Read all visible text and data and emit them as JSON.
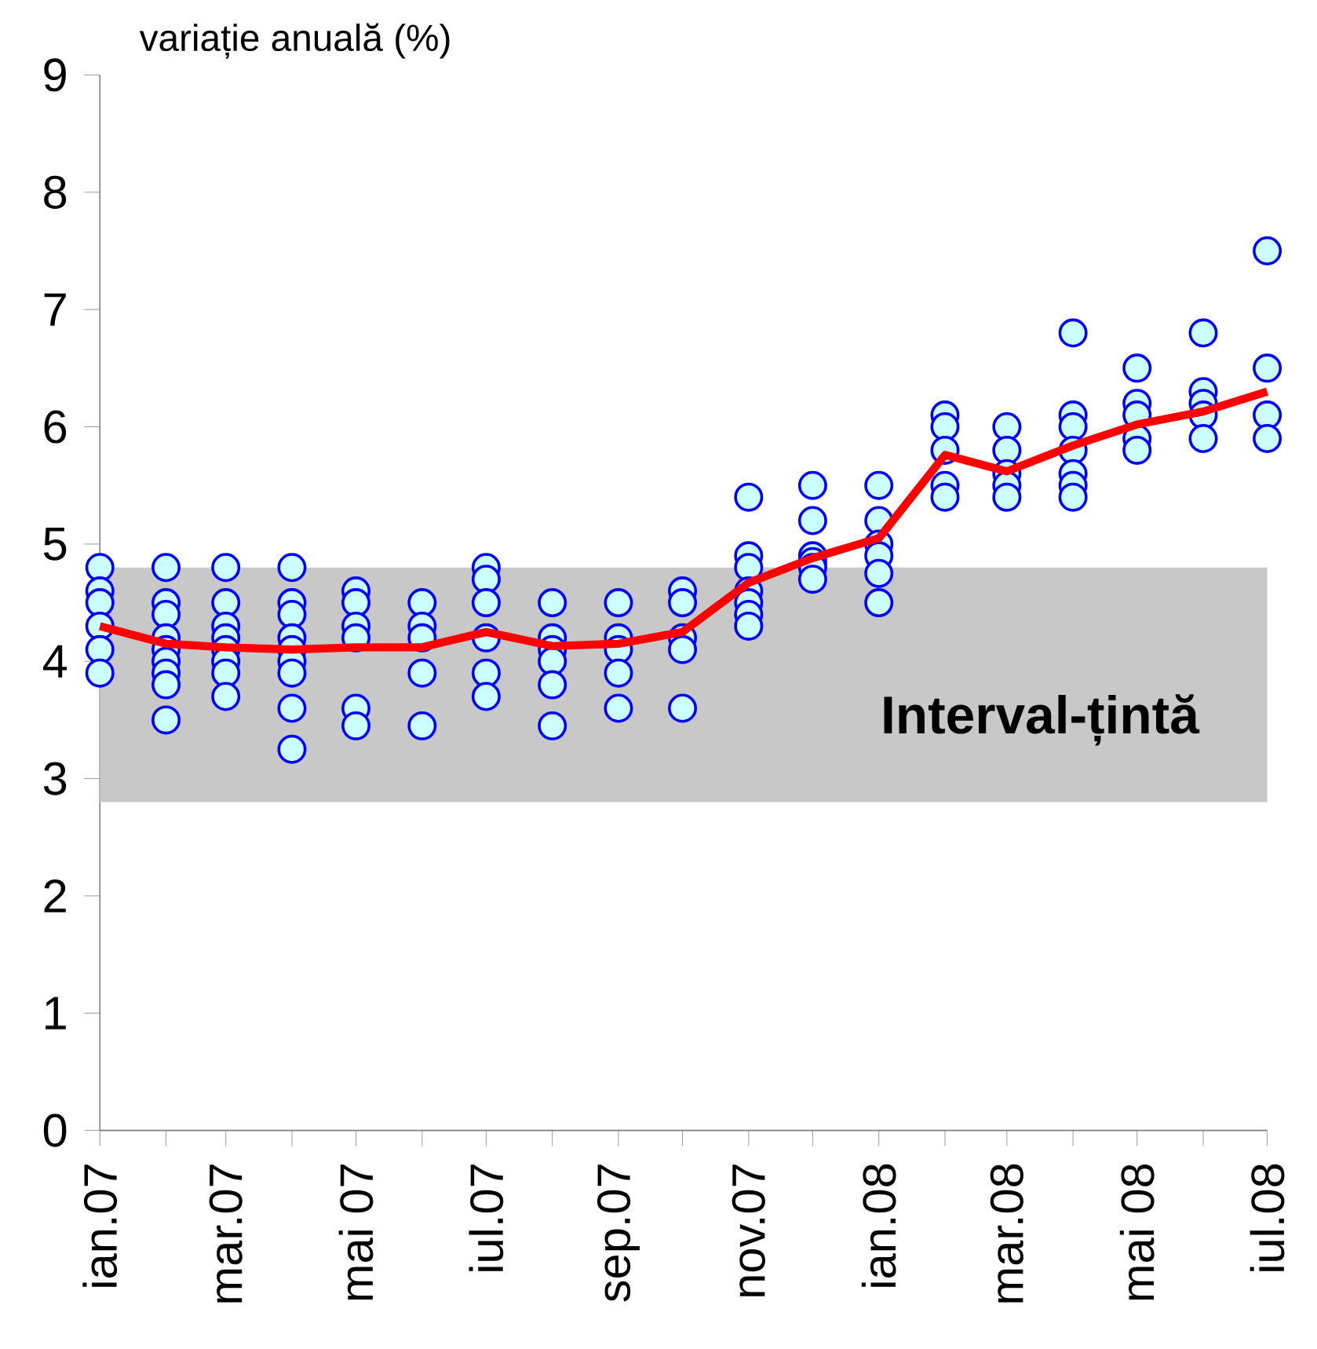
{
  "chart_data": {
    "type": "line",
    "ylabel": "variație anuală (%)",
    "xlim": [
      "2007-01",
      "2008-07"
    ],
    "ylim": [
      0,
      9
    ],
    "yticks": [
      0,
      1,
      2,
      3,
      4,
      5,
      6,
      7,
      8,
      9
    ],
    "xticks": [
      {
        "value": "2007-01",
        "label": "ian.07"
      },
      {
        "value": "2007-02",
        "label": null
      },
      {
        "value": "2007-03",
        "label": "mar.07"
      },
      {
        "value": "2007-04",
        "label": null
      },
      {
        "value": "2007-05",
        "label": "mai 07"
      },
      {
        "value": "2007-06",
        "label": null
      },
      {
        "value": "2007-07",
        "label": "iul.07"
      },
      {
        "value": "2007-08",
        "label": null
      },
      {
        "value": "2007-09",
        "label": "sep.07"
      },
      {
        "value": "2007-10",
        "label": null
      },
      {
        "value": "2007-11",
        "label": "nov.07"
      },
      {
        "value": "2007-12",
        "label": null
      },
      {
        "value": "2008-01",
        "label": "ian.08"
      },
      {
        "value": "2008-02",
        "label": null
      },
      {
        "value": "2008-03",
        "label": "mar.08"
      },
      {
        "value": "2008-04",
        "label": null
      },
      {
        "value": "2008-05",
        "label": "mai 08"
      },
      {
        "value": "2008-06",
        "label": null
      },
      {
        "value": "2008-07",
        "label": "iul.08"
      }
    ],
    "bands": [
      {
        "axis": "y",
        "from": 2.8,
        "to": 4.8,
        "label": "Interval-țintă",
        "color": "#c8c8c8"
      }
    ],
    "series": [
      {
        "type": "scatter",
        "color": "#ccffff",
        "marker": "circle",
        "x": [
          "2007-01",
          "2007-01",
          "2007-01",
          "2007-01",
          "2007-01",
          "2007-01",
          "2007-02",
          "2007-02",
          "2007-02",
          "2007-02",
          "2007-02",
          "2007-02",
          "2007-02",
          "2007-02",
          "2007-02",
          "2007-03",
          "2007-03",
          "2007-03",
          "2007-03",
          "2007-03",
          "2007-03",
          "2007-03",
          "2007-03",
          "2007-04",
          "2007-04",
          "2007-04",
          "2007-04",
          "2007-04",
          "2007-04",
          "2007-04",
          "2007-04",
          "2007-04",
          "2007-05",
          "2007-05",
          "2007-05",
          "2007-05",
          "2007-05",
          "2007-05",
          "2007-06",
          "2007-06",
          "2007-06",
          "2007-06",
          "2007-06",
          "2007-07",
          "2007-07",
          "2007-07",
          "2007-07",
          "2007-07",
          "2007-07",
          "2007-08",
          "2007-08",
          "2007-08",
          "2007-08",
          "2007-08",
          "2007-08",
          "2007-09",
          "2007-09",
          "2007-09",
          "2007-09",
          "2007-09",
          "2007-10",
          "2007-10",
          "2007-10",
          "2007-10",
          "2007-10",
          "2007-11",
          "2007-11",
          "2007-11",
          "2007-11",
          "2007-11",
          "2007-11",
          "2007-11",
          "2007-12",
          "2007-12",
          "2007-12",
          "2007-12",
          "2007-12",
          "2007-12",
          "2008-01",
          "2008-01",
          "2008-01",
          "2008-01",
          "2008-01",
          "2008-01",
          "2008-02",
          "2008-02",
          "2008-02",
          "2008-02",
          "2008-02",
          "2008-03",
          "2008-03",
          "2008-03",
          "2008-03",
          "2008-03",
          "2008-04",
          "2008-04",
          "2008-04",
          "2008-04",
          "2008-04",
          "2008-04",
          "2008-04",
          "2008-05",
          "2008-05",
          "2008-05",
          "2008-05",
          "2008-05",
          "2008-06",
          "2008-06",
          "2008-06",
          "2008-06",
          "2008-06",
          "2008-07",
          "2008-07",
          "2008-07",
          "2008-07"
        ],
        "values": [
          4.8,
          4.6,
          4.5,
          4.3,
          4.1,
          3.9,
          4.8,
          4.5,
          4.4,
          4.2,
          4.1,
          4.0,
          3.9,
          3.8,
          3.5,
          4.8,
          4.5,
          4.3,
          4.2,
          4.1,
          4.0,
          3.9,
          3.7,
          4.8,
          4.5,
          4.4,
          4.2,
          4.1,
          4.0,
          3.9,
          3.6,
          3.25,
          4.6,
          4.5,
          4.3,
          4.2,
          3.6,
          3.45,
          4.5,
          4.3,
          4.2,
          3.9,
          3.45,
          4.8,
          4.7,
          4.5,
          4.2,
          3.9,
          3.7,
          4.5,
          4.2,
          4.1,
          4.0,
          3.8,
          3.45,
          4.5,
          4.2,
          4.1,
          3.9,
          3.6,
          4.6,
          4.5,
          4.2,
          4.1,
          3.6,
          5.4,
          4.9,
          4.8,
          4.6,
          4.5,
          4.4,
          4.3,
          5.5,
          5.2,
          4.9,
          4.85,
          4.8,
          4.7,
          5.5,
          5.2,
          5.0,
          4.9,
          4.75,
          4.5,
          6.1,
          6.0,
          5.8,
          5.5,
          5.4,
          6.0,
          5.8,
          5.6,
          5.5,
          5.4,
          6.8,
          6.1,
          6.0,
          5.8,
          5.6,
          5.5,
          5.4,
          6.5,
          6.2,
          6.1,
          5.9,
          5.8,
          6.8,
          6.3,
          6.2,
          6.1,
          5.9,
          7.5,
          6.5,
          6.1,
          5.9
        ]
      },
      {
        "type": "line",
        "color": "#ff0000",
        "marker": "none",
        "line_style": "solid",
        "x": [
          "2007-01",
          "2007-02",
          "2007-03",
          "2007-04",
          "2007-05",
          "2007-06",
          "2007-07",
          "2007-08",
          "2007-09",
          "2007-10",
          "2007-11",
          "2007-12",
          "2008-01",
          "2008-02",
          "2008-03",
          "2008-04",
          "2008-05",
          "2008-06",
          "2008-07"
        ],
        "values": [
          4.3,
          4.15,
          4.12,
          4.1,
          4.12,
          4.12,
          4.25,
          4.13,
          4.15,
          4.25,
          4.67,
          4.88,
          5.05,
          5.76,
          5.62,
          5.84,
          6.02,
          6.13,
          6.3
        ]
      }
    ]
  }
}
